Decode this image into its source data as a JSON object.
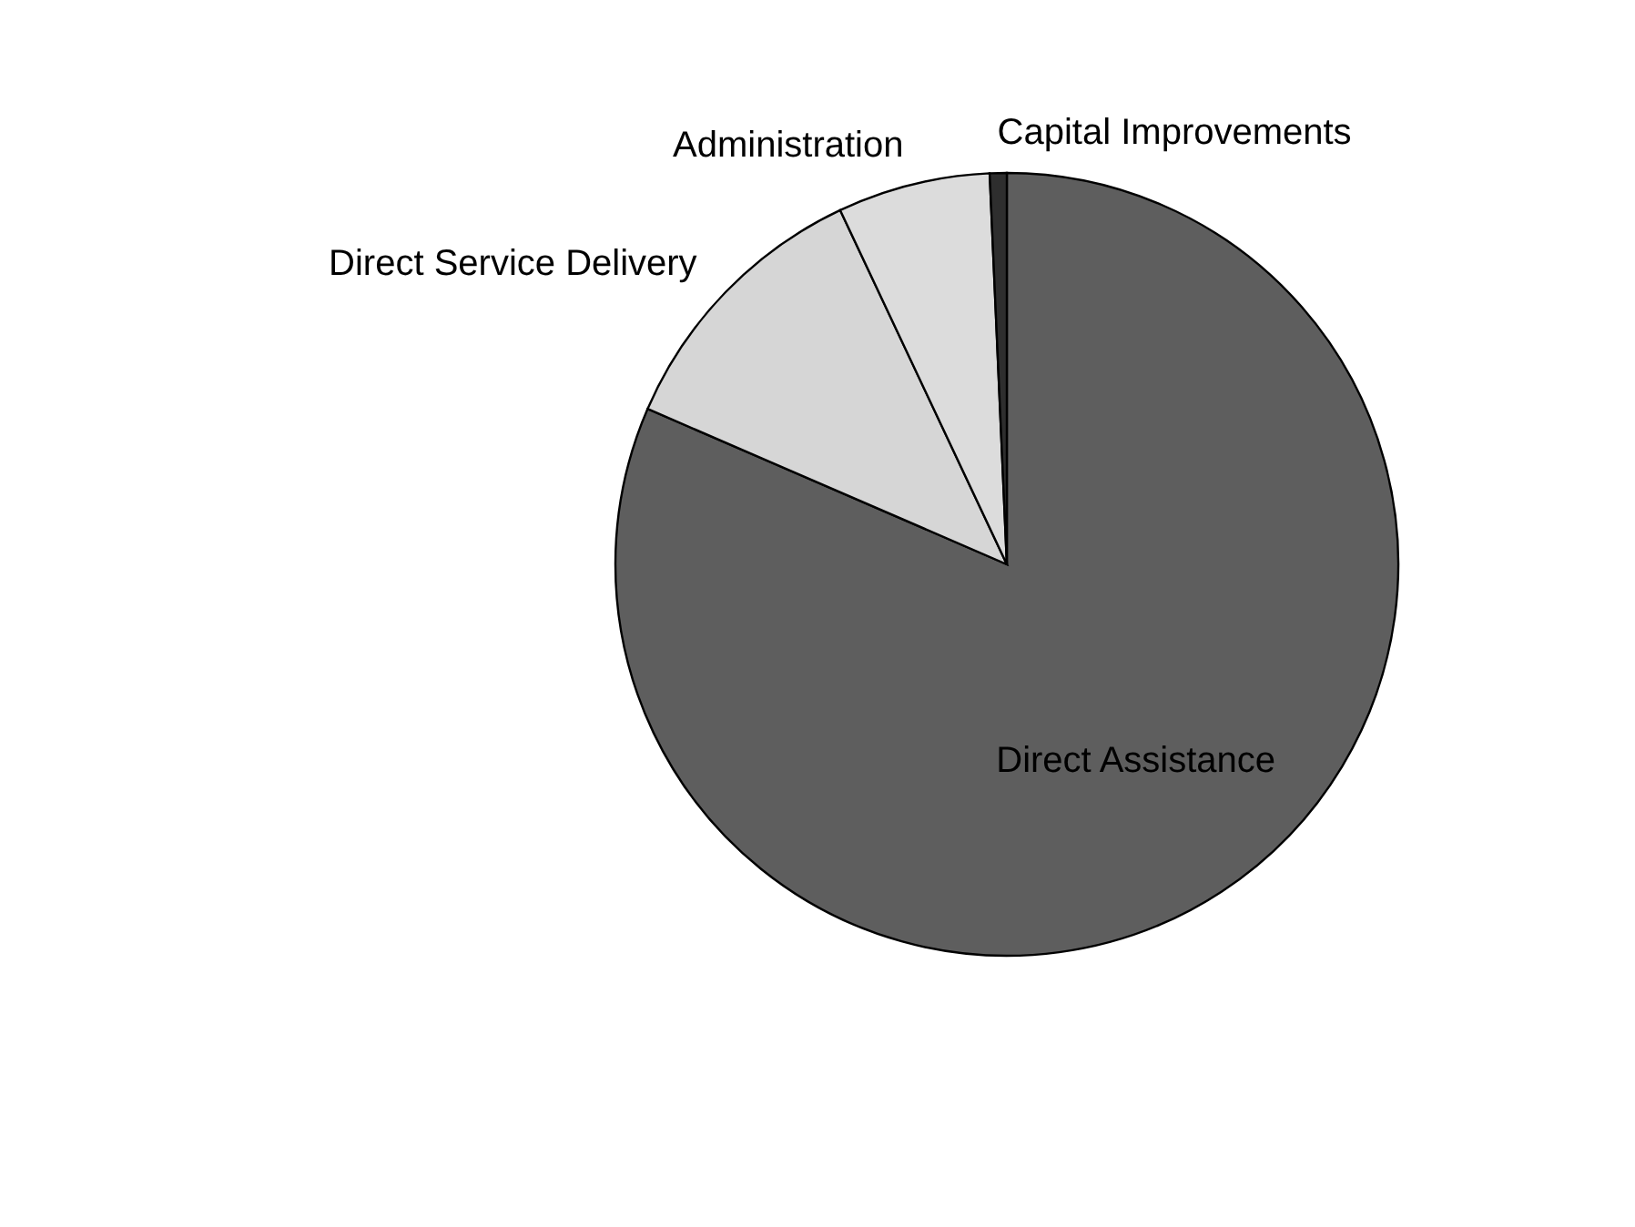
{
  "chart_data": {
    "type": "pie",
    "categories": [
      "Direct Assistance",
      "Direct Service Delivery",
      "Administration",
      "Capital Improvements"
    ],
    "values": [
      81.5,
      11.5,
      6.3,
      0.7
    ],
    "colors": [
      "#5e5e5e",
      "#d6d6d6",
      "#dcdcdc",
      "#2e2e2e"
    ],
    "legend": false
  }
}
